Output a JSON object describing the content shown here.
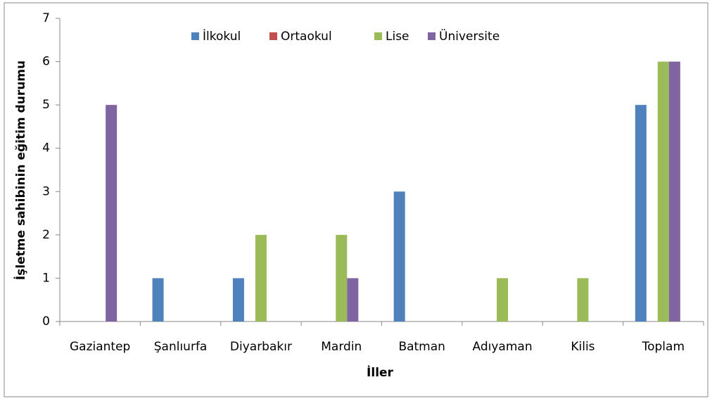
{
  "chart_data": {
    "type": "bar",
    "categories": [
      "Gaziantep",
      "Şanlıurfa",
      "Diyarbakır",
      "Mardin",
      "Batman",
      "Adıyaman",
      "Kilis",
      "Toplam"
    ],
    "series": [
      {
        "name": "İlkokul",
        "color": "#4f81bd",
        "values": [
          0,
          1,
          1,
          0,
          3,
          0,
          0,
          5
        ]
      },
      {
        "name": "Ortaokul",
        "color": "#c0504d",
        "values": [
          0,
          0,
          0,
          0,
          0,
          0,
          0,
          0
        ]
      },
      {
        "name": "Lise",
        "color": "#9bbb59",
        "values": [
          0,
          0,
          2,
          2,
          0,
          1,
          1,
          6
        ]
      },
      {
        "name": "Üniversite",
        "color": "#8064a2",
        "values": [
          5,
          0,
          0,
          1,
          0,
          0,
          0,
          6
        ]
      }
    ],
    "x_label": "İller",
    "y_label": "İşletme sahibinin eğitim durumu",
    "ylim": [
      0,
      7
    ],
    "yticks": [
      0,
      1,
      2,
      3,
      4,
      5,
      6,
      7
    ],
    "grid": false,
    "legend": "top"
  }
}
